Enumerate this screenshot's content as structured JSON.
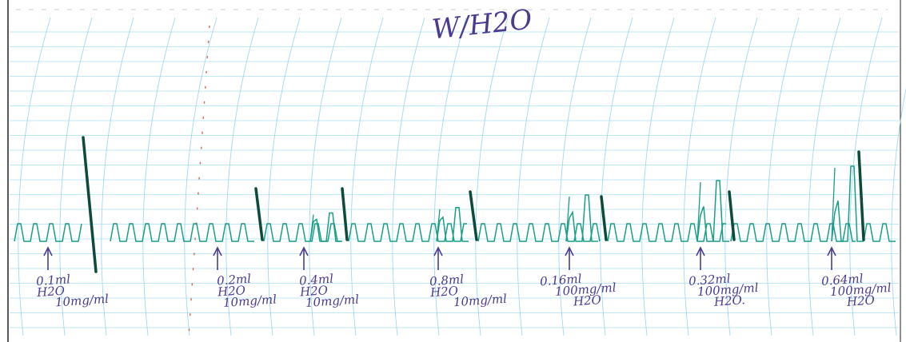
{
  "title": "W/H2O",
  "colors": {
    "paper": "#ffffff",
    "grid": "#8fd3ee",
    "trace": "#1a9e86",
    "trace_dark": "#0c4a3a",
    "ink": "#4b3a8f",
    "red_mark": "#d46a55"
  },
  "annotations": [
    {
      "lines": [
        "0.1ml",
        "H2O",
        "10mg/ml"
      ]
    },
    {
      "lines": [
        "0.2ml",
        "H2O",
        "10mg/ml"
      ]
    },
    {
      "lines": [
        "0.4ml",
        "H2O",
        "10mg/ml"
      ]
    },
    {
      "lines": [
        "0.8ml",
        "H2O",
        "10mg/ml"
      ]
    },
    {
      "lines": [
        "0.16ml",
        "100mg/ml",
        "H2O"
      ]
    },
    {
      "lines": [
        "0.32ml",
        "100mg/ml",
        "H2O."
      ]
    },
    {
      "lines": [
        "0.64ml",
        "100mg/ml",
        "H2O"
      ]
    }
  ],
  "trace_events": [
    {
      "amplitude": 0.0
    },
    {
      "amplitude": 0.15
    },
    {
      "amplitude": 0.3
    },
    {
      "amplitude": 0.45
    },
    {
      "amplitude": 0.8
    },
    {
      "amplitude": 1.2
    },
    {
      "amplitude": 1.6
    }
  ]
}
